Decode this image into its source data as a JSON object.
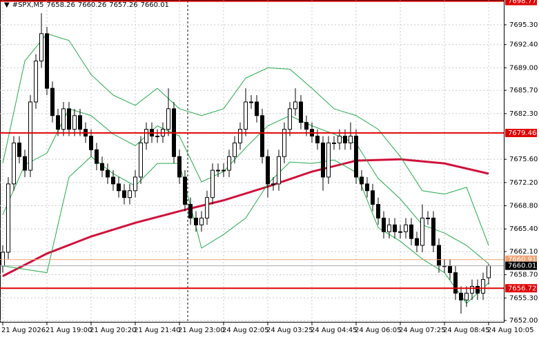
{
  "chart_data": {
    "type": "candlestick",
    "title": "#SPX,M5",
    "xlim": [
      -0.5,
      90.75
    ],
    "ylim": [
      7651.7,
      7698.93
    ],
    "xticks": [
      {
        "value": 0,
        "label": "21 Aug 2026"
      },
      {
        "value": 8,
        "label": "21 Aug 19:00"
      },
      {
        "value": 16,
        "label": "21 Aug 20:20"
      },
      {
        "value": 24,
        "label": "21 Aug 21:40"
      },
      {
        "value": 32,
        "label": "21 Aug 23:00"
      },
      {
        "value": 40,
        "label": "24 Aug 02:05"
      },
      {
        "value": 48,
        "label": "24 Aug 03:25"
      },
      {
        "value": 56,
        "label": "24 Aug 04:45"
      },
      {
        "value": 64,
        "label": "24 Aug 06:05"
      },
      {
        "value": 72,
        "label": "24 Aug 07:25"
      },
      {
        "value": 80,
        "label": "24 Aug 08:45"
      },
      {
        "value": 88,
        "label": "24 Aug 10:05"
      }
    ],
    "yticks": [
      {
        "value": 7652.0,
        "label": "7652.00"
      },
      {
        "value": 7655.3,
        "label": "7655.30"
      },
      {
        "value": 7658.7,
        "label": "7658.70"
      },
      {
        "value": 7662.1,
        "label": "7662.10"
      },
      {
        "value": 7665.4,
        "label": "7665.40"
      },
      {
        "value": 7668.8,
        "label": "7668.80"
      },
      {
        "value": 7672.2,
        "label": "7672.20"
      },
      {
        "value": 7675.6,
        "label": "7675.60"
      },
      {
        "value": 7682.3,
        "label": "7682.30"
      },
      {
        "value": 7685.7,
        "label": "7685.70"
      },
      {
        "value": 7689.0,
        "label": "7689.00"
      },
      {
        "value": 7692.4,
        "label": "7692.40"
      },
      {
        "value": 7695.3,
        "label": "7695.30"
      }
    ],
    "grid": true,
    "up_color": "#ffffff",
    "down_color": "#000000",
    "open": [
      7660,
      7662,
      7672,
      7678,
      7676,
      7674,
      7684,
      7690,
      7694,
      7686,
      7682,
      7680,
      7683,
      7680,
      7682,
      7680,
      7679,
      7677,
      7675,
      7674,
      7673,
      7672,
      7671,
      7670,
      7671,
      7673,
      7678,
      7680,
      7679,
      7679,
      7680,
      7683,
      7676,
      7673,
      7669,
      7667,
      7666,
      7667,
      7670,
      7674,
      7674,
      7674,
      7676,
      7678,
      7680,
      7684,
      7684,
      7682,
      7676,
      7672,
      7672,
      7676,
      7680,
      7683,
      7684,
      7681,
      7680,
      7679,
      7678,
      7673,
      7678,
      7678,
      7679,
      7678,
      7679,
      7673,
      7672,
      7671,
      7669,
      7667,
      7665,
      7666,
      7665,
      7665,
      7666,
      7664,
      7663,
      7667,
      7667,
      7663,
      7660,
      7660,
      7659,
      7656,
      7655,
      7656,
      7657,
      7656,
      7658.26
    ],
    "high": [
      7663,
      7673,
      7679,
      7679,
      7677,
      7685,
      7691,
      7697,
      7695,
      7687,
      7683,
      7684,
      7684,
      7683,
      7683,
      7681,
      7680,
      7678,
      7676,
      7675,
      7674,
      7673,
      7672,
      7672,
      7674,
      7679,
      7681,
      7681,
      7680,
      7681,
      7686,
      7684,
      7677,
      7674,
      7670,
      7668,
      7668,
      7671,
      7675,
      7675,
      7675,
      7677,
      7679,
      7681,
      7686,
      7685,
      7685,
      7683,
      7677,
      7673,
      7677,
      7681,
      7684,
      7686,
      7685,
      7682,
      7681,
      7680,
      7679,
      7679,
      7679,
      7680,
      7680,
      7681,
      7680,
      7674,
      7673,
      7672,
      7670,
      7668,
      7667,
      7667,
      7666,
      7667,
      7667,
      7665,
      7669,
      7668,
      7668,
      7664,
      7661,
      7661,
      7660,
      7657,
      7657,
      7658,
      7658,
      7659,
      7660.26
    ],
    "low": [
      7659,
      7661,
      7671,
      7675,
      7673,
      7673,
      7683,
      7689,
      7685,
      7681,
      7679,
      7679,
      7679,
      7679,
      7679,
      7678,
      7676,
      7674,
      7673,
      7672,
      7671,
      7670,
      7669,
      7669,
      7670,
      7672,
      7677,
      7678,
      7678,
      7678,
      7679,
      7675,
      7672,
      7668,
      7666,
      7665,
      7665,
      7666,
      7669,
      7673,
      7673,
      7673,
      7675,
      7677,
      7679,
      7683,
      7681,
      7675,
      7670,
      7671,
      7671,
      7675,
      7679,
      7682,
      7680,
      7679,
      7678,
      7677,
      7671,
      7672,
      7677,
      7677,
      7677,
      7677,
      7672,
      7671,
      7670,
      7668,
      7666,
      7664,
      7664,
      7664,
      7664,
      7664,
      7663,
      7662,
      7662,
      7666,
      7662,
      7659,
      7659,
      7658,
      7655,
      7653,
      7654,
      7655,
      7655,
      7655,
      7657.26
    ],
    "close": [
      7662,
      7672,
      7678,
      7676,
      7674,
      7684,
      7690,
      7694,
      7686,
      7682,
      7680,
      7683,
      7680,
      7682,
      7680,
      7679,
      7677,
      7675,
      7674,
      7673,
      7672,
      7671,
      7670,
      7671,
      7673,
      7678,
      7680,
      7679,
      7679,
      7680,
      7683,
      7676,
      7673,
      7669,
      7667,
      7666,
      7667,
      7670,
      7674,
      7674,
      7674,
      7676,
      7678,
      7680,
      7684,
      7684,
      7682,
      7676,
      7672,
      7672,
      7676,
      7680,
      7683,
      7684,
      7681,
      7680,
      7679,
      7678,
      7673,
      7678,
      7678,
      7679,
      7678,
      7679,
      7673,
      7672,
      7671,
      7669,
      7667,
      7665,
      7666,
      7665,
      7665,
      7666,
      7664,
      7663,
      7667,
      7667,
      7663,
      7660,
      7660,
      7659,
      7656,
      7655,
      7656,
      7657,
      7656,
      7658,
      7660.01
    ],
    "lines": [
      {
        "color": "#d0103a",
        "width": 3,
        "x": [
          0,
          8,
          16,
          24,
          32,
          40,
          48,
          56,
          64,
          72,
          80,
          88
        ],
        "values": [
          7658.5,
          7661.8,
          7664.3,
          7666.3,
          7668.0,
          7669.6,
          7671.6,
          7673.8,
          7675.4,
          7675.6,
          7675.0,
          7673.5
        ]
      },
      {
        "color": "#22a84a",
        "width": 1,
        "x": [
          0,
          4,
          8,
          12,
          16,
          20,
          24,
          28,
          32,
          36,
          40,
          44,
          48,
          52,
          56,
          60,
          64,
          68,
          72,
          76,
          80,
          84,
          88
        ],
        "values": [
          7675,
          7690,
          7694,
          7693,
          7688,
          7685,
          7683.5,
          7686,
          7683,
          7682,
          7683,
          7687.5,
          7689,
          7688.8,
          7686,
          7683,
          7682,
          7680,
          7676,
          7671,
          7670.5,
          7671.5,
          7663
        ]
      },
      {
        "color": "#22a84a",
        "width": 1,
        "x": [
          0,
          4,
          8,
          12,
          16,
          20,
          24,
          28,
          32,
          36,
          40,
          44,
          48,
          52,
          56,
          60,
          64,
          68,
          72,
          76,
          80,
          84,
          88
        ],
        "values": [
          7667.5,
          7674.8,
          7676.5,
          7683,
          7682,
          7679.3,
          7677.6,
          7680.5,
          7679,
          7672.3,
          7673.8,
          7677.3,
          7680.5,
          7682,
          7680.5,
          7679.3,
          7677.9,
          7672.8,
          7669.8,
          7666,
          7664.8,
          7663,
          7660.3
        ]
      },
      {
        "color": "#22a84a",
        "width": 1,
        "x": [
          0,
          4,
          8,
          12,
          16,
          20,
          24,
          28,
          32,
          36,
          40,
          44,
          48,
          52,
          56,
          60,
          64,
          68,
          72,
          76,
          80,
          84,
          88
        ],
        "values": [
          7660,
          7659.5,
          7659,
          7673,
          7676,
          7673.5,
          7671.7,
          7675,
          7675,
          7662.6,
          7664.6,
          7667,
          7672,
          7675.2,
          7675,
          7675.5,
          7673.7,
          7665.6,
          7663.6,
          7661,
          7659,
          7654.5,
          7657.5
        ]
      }
    ],
    "levels": [
      {
        "value": 7698.77,
        "color": "#e00000"
      },
      {
        "value": 7679.46,
        "color": "#e00000"
      },
      {
        "value": 7660.91,
        "color": "#f0a070"
      },
      {
        "value": 7660.01,
        "color": "#000000"
      },
      {
        "value": 7656.72,
        "color": "#e00000"
      }
    ]
  }
}
